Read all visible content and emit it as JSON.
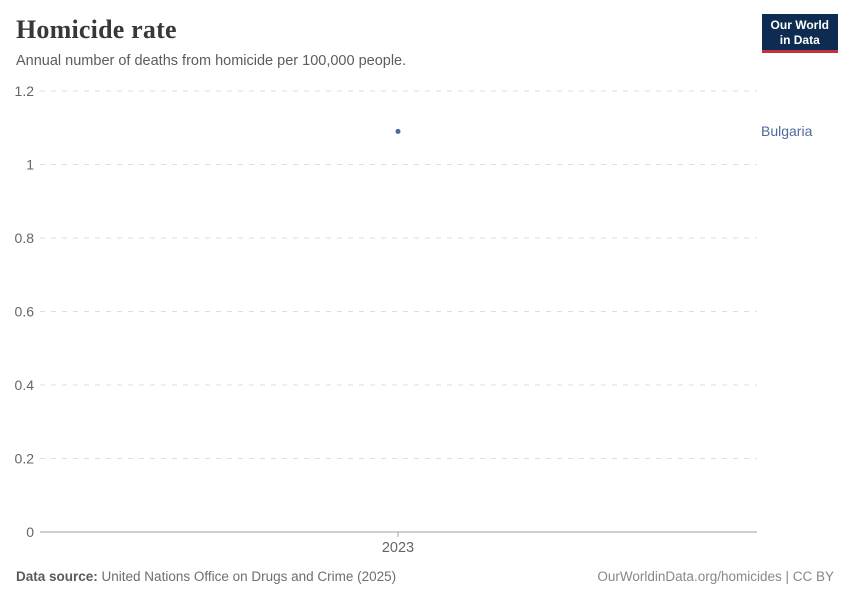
{
  "header": {
    "title": "Homicide rate",
    "subtitle": "Annual number of deaths from homicide per 100,000 people.",
    "logo": {
      "line1": "Our World",
      "line2": "in Data",
      "bg_color": "#0E2C52",
      "accent_color": "#C5303E"
    }
  },
  "chart_data": {
    "type": "scatter",
    "title": "Homicide rate",
    "subtitle": "Annual number of deaths from homicide per 100,000 people.",
    "x": [
      2023
    ],
    "series": [
      {
        "name": "Bulgaria",
        "color": "#4C6A9C",
        "values": [
          1.09
        ]
      }
    ],
    "xlabel": "",
    "ylabel": "",
    "ylim": [
      0,
      1.2
    ],
    "yticks": [
      0,
      0.2,
      0.4,
      0.6,
      0.8,
      1,
      1.2
    ],
    "ytick_labels": [
      "0",
      "0.2",
      "0.4",
      "0.6",
      "0.8",
      "1",
      "1.2"
    ],
    "xtick_labels": [
      "2023"
    ],
    "grid": "horizontal-dashed",
    "legend": "entity-label-right-of-point"
  },
  "footer": {
    "source_label": "Data source:",
    "source_text": " United Nations Office on Drugs and Crime (2025)",
    "credit": "OurWorldinData.org/homicides | CC BY"
  },
  "colors": {
    "grid": "#dddddd",
    "axis": "#a1a1a1",
    "tick_text": "#666666",
    "series": "#4C6A9C"
  }
}
